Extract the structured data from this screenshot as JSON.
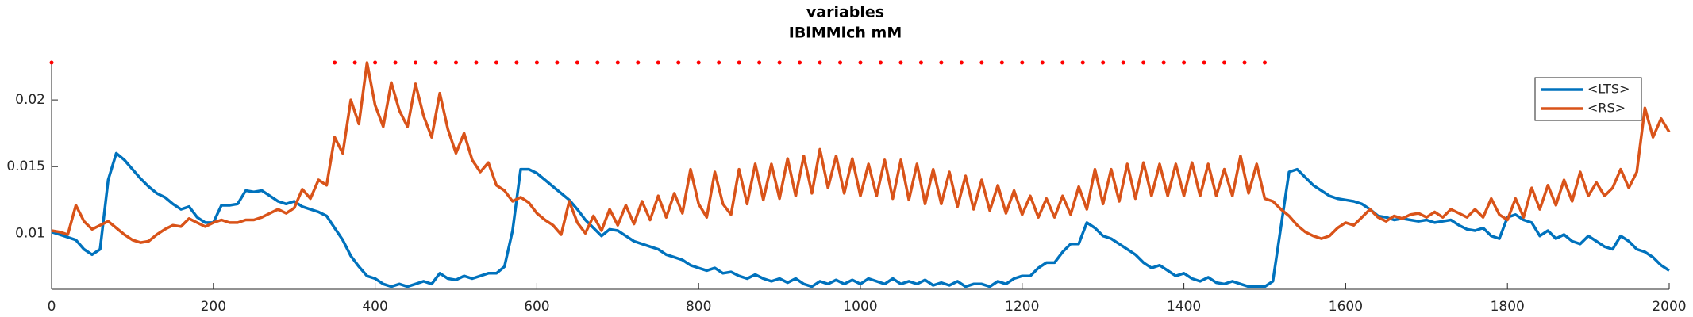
{
  "chart_data": {
    "type": "line",
    "title": "variables",
    "subtitle": "IBiMMich mM",
    "x": [
      0,
      10,
      20,
      30,
      40,
      50,
      60,
      70,
      80,
      90,
      100,
      110,
      120,
      130,
      140,
      150,
      160,
      170,
      180,
      190,
      200,
      210,
      220,
      230,
      240,
      250,
      260,
      270,
      280,
      290,
      300,
      310,
      320,
      330,
      340,
      350,
      360,
      370,
      380,
      390,
      400,
      410,
      420,
      430,
      440,
      450,
      460,
      470,
      480,
      490,
      500,
      510,
      520,
      530,
      540,
      550,
      560,
      570,
      580,
      590,
      600,
      610,
      620,
      630,
      640,
      650,
      660,
      670,
      680,
      690,
      700,
      710,
      720,
      730,
      740,
      750,
      760,
      770,
      780,
      790,
      800,
      810,
      820,
      830,
      840,
      850,
      860,
      870,
      880,
      890,
      900,
      910,
      920,
      930,
      940,
      950,
      960,
      970,
      980,
      990,
      1000,
      1010,
      1020,
      1030,
      1040,
      1050,
      1060,
      1070,
      1080,
      1090,
      1100,
      1110,
      1120,
      1130,
      1140,
      1150,
      1160,
      1170,
      1180,
      1190,
      1200,
      1210,
      1220,
      1230,
      1240,
      1250,
      1260,
      1270,
      1280,
      1290,
      1300,
      1310,
      1320,
      1330,
      1340,
      1350,
      1360,
      1370,
      1380,
      1390,
      1400,
      1410,
      1420,
      1430,
      1440,
      1450,
      1460,
      1470,
      1480,
      1490,
      1500,
      1510,
      1520,
      1530,
      1540,
      1550,
      1560,
      1570,
      1580,
      1590,
      1600,
      1610,
      1620,
      1630,
      1640,
      1650,
      1660,
      1670,
      1680,
      1690,
      1700,
      1710,
      1720,
      1730,
      1740,
      1750,
      1760,
      1770,
      1780,
      1790,
      1800,
      1810,
      1820,
      1830,
      1840,
      1850,
      1860,
      1870,
      1880,
      1890,
      1900,
      1910,
      1920,
      1930,
      1940,
      1950,
      1960,
      1970,
      1980,
      1990,
      2000
    ],
    "series": [
      {
        "name": "<LTS>",
        "color": "#0072bd",
        "values": [
          0.0101,
          0.0099,
          0.0097,
          0.0095,
          0.0088,
          0.0084,
          0.0088,
          0.014,
          0.016,
          0.0155,
          0.0148,
          0.0141,
          0.0135,
          0.013,
          0.0127,
          0.0122,
          0.0118,
          0.012,
          0.0112,
          0.0108,
          0.0108,
          0.0121,
          0.0121,
          0.0122,
          0.0132,
          0.0131,
          0.0132,
          0.0128,
          0.0124,
          0.0122,
          0.0124,
          0.012,
          0.0118,
          0.0116,
          0.0113,
          0.0104,
          0.0095,
          0.0083,
          0.0075,
          0.0068,
          0.0066,
          0.0062,
          0.006,
          0.0062,
          0.006,
          0.0062,
          0.0064,
          0.0062,
          0.007,
          0.0066,
          0.0065,
          0.0068,
          0.0066,
          0.0068,
          0.007,
          0.007,
          0.0075,
          0.0102,
          0.0148,
          0.0148,
          0.0145,
          0.014,
          0.0135,
          0.013,
          0.0125,
          0.0118,
          0.011,
          0.0104,
          0.0098,
          0.0103,
          0.0102,
          0.0098,
          0.0094,
          0.0092,
          0.009,
          0.0088,
          0.0084,
          0.0082,
          0.008,
          0.0076,
          0.0074,
          0.0072,
          0.0074,
          0.007,
          0.0071,
          0.0068,
          0.0066,
          0.0069,
          0.0066,
          0.0064,
          0.0066,
          0.0063,
          0.0066,
          0.0062,
          0.006,
          0.0064,
          0.0062,
          0.0065,
          0.0062,
          0.0065,
          0.0062,
          0.0066,
          0.0064,
          0.0062,
          0.0066,
          0.0062,
          0.0064,
          0.0062,
          0.0065,
          0.0061,
          0.0063,
          0.0061,
          0.0064,
          0.006,
          0.0062,
          0.0062,
          0.006,
          0.0064,
          0.0062,
          0.0066,
          0.0068,
          0.0068,
          0.0074,
          0.0078,
          0.0078,
          0.0086,
          0.0092,
          0.0092,
          0.0108,
          0.0104,
          0.0098,
          0.0096,
          0.0092,
          0.0088,
          0.0084,
          0.0078,
          0.0074,
          0.0076,
          0.0072,
          0.0068,
          0.007,
          0.0066,
          0.0064,
          0.0067,
          0.0063,
          0.0062,
          0.0064,
          0.0062,
          0.006,
          0.006,
          0.006,
          0.0064,
          0.0105,
          0.0146,
          0.0148,
          0.0142,
          0.0136,
          0.0132,
          0.0128,
          0.0126,
          0.0125,
          0.0124,
          0.0122,
          0.0118,
          0.0113,
          0.0112,
          0.011,
          0.0111,
          0.011,
          0.0109,
          0.011,
          0.0108,
          0.0109,
          0.011,
          0.0106,
          0.0103,
          0.0102,
          0.0104,
          0.0098,
          0.0096,
          0.0112,
          0.0114,
          0.011,
          0.0108,
          0.0098,
          0.0102,
          0.0096,
          0.0099,
          0.0094,
          0.0092,
          0.0098,
          0.0094,
          0.009,
          0.0088,
          0.0098,
          0.0094,
          0.0088,
          0.0086,
          0.0082,
          0.0076,
          0.0072
        ]
      },
      {
        "name": "<RS>",
        "color": "#d95319",
        "values": [
          0.0102,
          0.0101,
          0.0099,
          0.0121,
          0.0109,
          0.0103,
          0.0106,
          0.0109,
          0.0104,
          0.0099,
          0.0095,
          0.0093,
          0.0094,
          0.0099,
          0.0103,
          0.0106,
          0.0105,
          0.0111,
          0.0108,
          0.0105,
          0.0108,
          0.011,
          0.0108,
          0.0108,
          0.011,
          0.011,
          0.0112,
          0.0115,
          0.0118,
          0.0115,
          0.0119,
          0.0133,
          0.0126,
          0.014,
          0.0136,
          0.0172,
          0.016,
          0.02,
          0.0182,
          0.0228,
          0.0196,
          0.018,
          0.0213,
          0.0192,
          0.018,
          0.0212,
          0.0188,
          0.0172,
          0.0205,
          0.0178,
          0.016,
          0.0175,
          0.0155,
          0.0146,
          0.0153,
          0.0136,
          0.0132,
          0.0124,
          0.0127,
          0.0123,
          0.0115,
          0.011,
          0.0106,
          0.0099,
          0.0124,
          0.0108,
          0.01,
          0.0113,
          0.0102,
          0.0118,
          0.0106,
          0.0121,
          0.0107,
          0.0124,
          0.011,
          0.0128,
          0.0112,
          0.013,
          0.0115,
          0.0148,
          0.0122,
          0.0112,
          0.0146,
          0.0122,
          0.0114,
          0.0148,
          0.0122,
          0.0152,
          0.0125,
          0.0152,
          0.0126,
          0.0156,
          0.0128,
          0.0158,
          0.013,
          0.0163,
          0.0134,
          0.0158,
          0.013,
          0.0156,
          0.0128,
          0.0152,
          0.0128,
          0.0155,
          0.0126,
          0.0155,
          0.0125,
          0.0152,
          0.0122,
          0.0148,
          0.0122,
          0.0146,
          0.012,
          0.0143,
          0.0118,
          0.014,
          0.0117,
          0.0136,
          0.0115,
          0.0132,
          0.0114,
          0.0128,
          0.0112,
          0.0126,
          0.0112,
          0.0128,
          0.0114,
          0.0135,
          0.0118,
          0.0148,
          0.0122,
          0.0148,
          0.0124,
          0.0152,
          0.0126,
          0.0153,
          0.0128,
          0.0152,
          0.0128,
          0.0152,
          0.0128,
          0.0153,
          0.0128,
          0.0152,
          0.0128,
          0.0148,
          0.0128,
          0.0158,
          0.013,
          0.0152,
          0.0126,
          0.0124,
          0.0118,
          0.0113,
          0.0106,
          0.0101,
          0.0098,
          0.0096,
          0.0098,
          0.0104,
          0.0108,
          0.0106,
          0.0112,
          0.0118,
          0.0112,
          0.0109,
          0.0113,
          0.0111,
          0.0114,
          0.0115,
          0.0112,
          0.0116,
          0.0112,
          0.0118,
          0.0115,
          0.0112,
          0.0118,
          0.0112,
          0.0126,
          0.0114,
          0.011,
          0.0126,
          0.0112,
          0.0134,
          0.0118,
          0.0136,
          0.0121,
          0.014,
          0.0124,
          0.0146,
          0.0128,
          0.0138,
          0.0128,
          0.0134,
          0.0148,
          0.0134,
          0.0146,
          0.0194,
          0.0172,
          0.0186,
          0.0176
        ]
      }
    ],
    "markers": {
      "color": "#ff0000",
      "x": [
        0,
        350,
        375,
        400,
        425,
        450,
        475,
        500,
        525,
        550,
        575,
        600,
        625,
        650,
        675,
        700,
        725,
        750,
        775,
        800,
        825,
        850,
        875,
        900,
        925,
        950,
        975,
        1000,
        1025,
        1050,
        1075,
        1100,
        1125,
        1150,
        1175,
        1200,
        1225,
        1250,
        1275,
        1300,
        1325,
        1350,
        1375,
        1400,
        1425,
        1450,
        1475,
        1500
      ],
      "values": [
        0.0228,
        0.0228,
        0.0228,
        0.0228,
        0.0228,
        0.0228,
        0.0228,
        0.0228,
        0.0228,
        0.0228,
        0.0228,
        0.0228,
        0.0228,
        0.0228,
        0.0228,
        0.0228,
        0.0228,
        0.0228,
        0.0228,
        0.0228,
        0.0228,
        0.0228,
        0.0228,
        0.0228,
        0.0228,
        0.0228,
        0.0228,
        0.0228,
        0.0228,
        0.0228,
        0.0228,
        0.0228,
        0.0228,
        0.0228,
        0.0228,
        0.0228,
        0.0228,
        0.0228,
        0.0228,
        0.0228,
        0.0228,
        0.0228,
        0.0228,
        0.0228,
        0.0228,
        0.0228,
        0.0228,
        0.0228
      ]
    },
    "xlim": [
      0,
      2000
    ],
    "xticks": [
      0,
      200,
      400,
      600,
      800,
      1000,
      1200,
      1400,
      1600,
      1800,
      2000
    ],
    "ylim": [
      0.0058,
      0.0228
    ],
    "yticks": [
      0.01,
      0.015,
      0.02
    ],
    "legend": "northeast"
  }
}
